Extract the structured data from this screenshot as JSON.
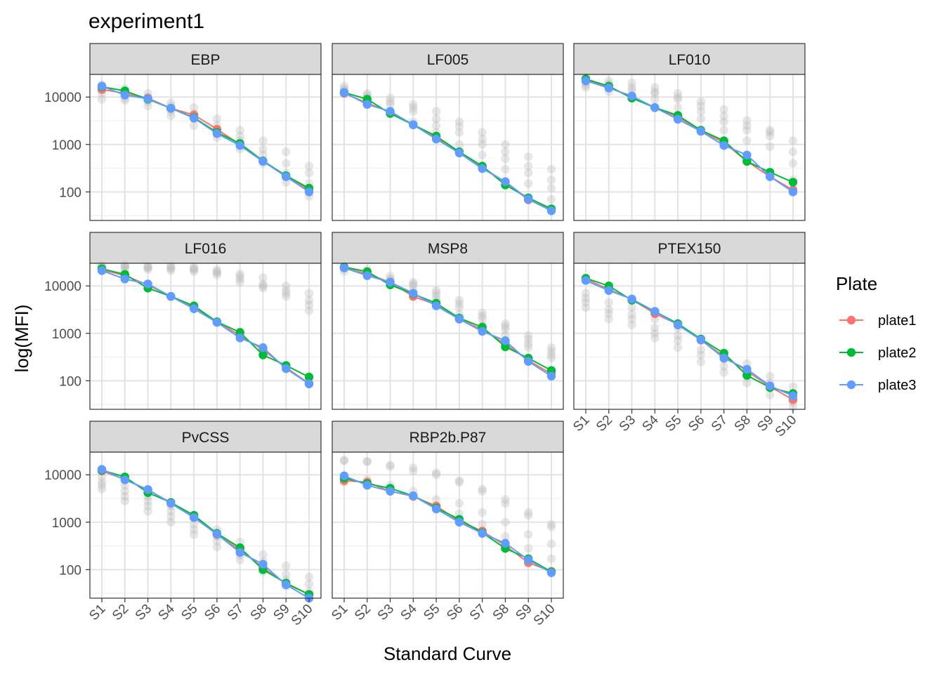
{
  "chart_data": {
    "type": "line",
    "title": "experiment1",
    "xlabel": "Standard Curve",
    "ylabel": "log(MFI)",
    "y_scale": "log10",
    "ylim": [
      25,
      30000
    ],
    "y_ticks": [
      100,
      1000,
      10000
    ],
    "y_tick_labels": [
      "100",
      "1000",
      "10000"
    ],
    "categories": [
      "S1",
      "S2",
      "S3",
      "S4",
      "S5",
      "S6",
      "S7",
      "S8",
      "S9",
      "S10"
    ],
    "legend": {
      "title": "Plate",
      "position": "right",
      "entries": [
        {
          "name": "plate1",
          "color": "#F8766D"
        },
        {
          "name": "plate2",
          "color": "#00BA38"
        },
        {
          "name": "plate3",
          "color": "#619CFF"
        }
      ]
    },
    "background_color": "#BBBBBB",
    "panels": [
      {
        "name": "EBP",
        "series": [
          {
            "name": "plate1",
            "values": [
              14500,
              12000,
              9500,
              5800,
              4200,
              2100,
              1000,
              450,
              210,
              110
            ]
          },
          {
            "name": "plate2",
            "values": [
              16500,
              13500,
              9000,
              5800,
              3700,
              1800,
              1050,
              450,
              220,
              120
            ]
          },
          {
            "name": "plate3",
            "values": [
              17000,
              11000,
              9200,
              5800,
              3600,
              1700,
              950,
              440,
              210,
              100
            ]
          }
        ],
        "background": [
          [
            9000,
            14000,
            18000,
            12000
          ],
          [
            8500,
            11000,
            15000,
            9500
          ],
          [
            6500,
            8000,
            12000,
            10000
          ],
          [
            4000,
            5000,
            7500,
            6500
          ],
          [
            2500,
            3500,
            6000,
            4500
          ],
          [
            1400,
            2000,
            3500,
            2500
          ],
          [
            800,
            1200,
            2000,
            1500
          ],
          [
            400,
            600,
            1200,
            800
          ],
          [
            160,
            250,
            700,
            400
          ],
          [
            80,
            150,
            350,
            250
          ]
        ]
      },
      {
        "name": "LF005",
        "series": [
          {
            "name": "plate1",
            "values": [
              12000,
              7500,
              4800,
              2600,
              1400,
              680,
              330,
              160,
              68,
              42
            ]
          },
          {
            "name": "plate2",
            "values": [
              12500,
              9000,
              4500,
              2600,
              1500,
              700,
              350,
              140,
              75,
              44
            ]
          },
          {
            "name": "plate3",
            "values": [
              12500,
              7000,
              5000,
              2600,
              1300,
              660,
              310,
              165,
              70,
              40
            ]
          }
        ],
        "background": [
          [
            12000,
            15000,
            17000,
            14000
          ],
          [
            8000,
            10000,
            12000,
            11000
          ],
          [
            5000,
            7000,
            9500,
            8000
          ],
          [
            3000,
            5000,
            7000,
            6000
          ],
          [
            1800,
            2500,
            5000,
            3500
          ],
          [
            1000,
            1800,
            3000,
            2400
          ],
          [
            600,
            1000,
            1800,
            1300
          ],
          [
            300,
            500,
            1000,
            700
          ],
          [
            150,
            250,
            550,
            350
          ],
          [
            70,
            120,
            300,
            180
          ]
        ]
      },
      {
        "name": "LF010",
        "series": [
          {
            "name": "plate1",
            "values": [
              23000,
              16000,
              10000,
              6000,
              3800,
              1900,
              1100,
              440,
              210,
              110
            ]
          },
          {
            "name": "plate2",
            "values": [
              24000,
              17000,
              9500,
              6000,
              4100,
              2000,
              1200,
              440,
              260,
              160
            ]
          },
          {
            "name": "plate3",
            "values": [
              22000,
              15500,
              10500,
              6000,
              3400,
              1900,
              950,
              600,
              210,
              100
            ]
          }
        ],
        "background": [
          [
            16000,
            20000,
            26000,
            18000
          ],
          [
            13000,
            17000,
            22000,
            19000
          ],
          [
            11000,
            14000,
            20000,
            16000
          ],
          [
            9000,
            12000,
            16000,
            13000
          ],
          [
            6000,
            9000,
            12000,
            10000
          ],
          [
            3500,
            5000,
            8000,
            6500
          ],
          [
            2000,
            3000,
            5500,
            4000
          ],
          [
            1200,
            2000,
            3200,
            2500
          ],
          [
            900,
            1500,
            2000,
            1800
          ],
          [
            180,
            400,
            1200,
            700
          ]
        ]
      },
      {
        "name": "LF016",
        "series": [
          {
            "name": "plate1",
            "values": [
              22000,
              16500,
              10500,
              6000,
              3600,
              1750,
              900,
              450,
              190,
              88
            ]
          },
          {
            "name": "plate2",
            "values": [
              23000,
              17500,
              9000,
              6000,
              3800,
              1750,
              1050,
              350,
              210,
              120
            ]
          },
          {
            "name": "plate3",
            "values": [
              21000,
              14000,
              11000,
              6000,
              3300,
              1700,
              800,
              500,
              180,
              86
            ]
          }
        ],
        "background": [
          [
            24000,
            26000,
            27000,
            25000
          ],
          [
            22000,
            25000,
            27000,
            26000
          ],
          [
            22000,
            24000,
            26000,
            25000
          ],
          [
            21000,
            23000,
            26000,
            25000
          ],
          [
            20000,
            22000,
            25000,
            23000
          ],
          [
            17000,
            19000,
            22000,
            20000
          ],
          [
            12000,
            14000,
            18000,
            16000
          ],
          [
            9000,
            10000,
            15000,
            11000
          ],
          [
            6000,
            7000,
            10000,
            8000
          ],
          [
            3000,
            4000,
            7000,
            5000
          ]
        ]
      },
      {
        "name": "MSP8",
        "series": [
          {
            "name": "plate1",
            "values": [
              24000,
              18000,
              12000,
              6000,
              4000,
              2000,
              1200,
              600,
              270,
              140
            ]
          },
          {
            "name": "plate2",
            "values": [
              25000,
              20000,
              10500,
              6800,
              4300,
              2100,
              1350,
              520,
              300,
              165
            ]
          },
          {
            "name": "plate3",
            "values": [
              24000,
              16500,
              12000,
              7000,
              3800,
              2000,
              1100,
              700,
              255,
              125
            ]
          }
        ],
        "background": [
          [
            20000,
            23000,
            26000,
            24000
          ],
          [
            16000,
            19000,
            22000,
            20000
          ],
          [
            11000,
            13000,
            16000,
            14000
          ],
          [
            8000,
            10000,
            12000,
            11000
          ],
          [
            5000,
            6000,
            8000,
            7000
          ],
          [
            2500,
            3500,
            5000,
            4200
          ],
          [
            1500,
            2000,
            2700,
            2300
          ],
          [
            900,
            1200,
            1600,
            1400
          ],
          [
            500,
            600,
            900,
            750
          ],
          [
            300,
            350,
            500,
            420
          ]
        ]
      },
      {
        "name": "PTEX150",
        "series": [
          {
            "name": "plate1",
            "values": [
              14000,
              8500,
              5200,
              2600,
              1550,
              720,
              330,
              160,
              75,
              40
            ]
          },
          {
            "name": "plate2",
            "values": [
              14500,
              10000,
              5000,
              2900,
              1600,
              760,
              380,
              130,
              72,
              54
            ]
          },
          {
            "name": "plate3",
            "values": [
              13000,
              8000,
              5300,
              2900,
              1500,
              730,
              300,
              175,
              78,
              48
            ]
          }
        ],
        "background": [
          [
            3500,
            4500,
            7000,
            5500
          ],
          [
            2000,
            2600,
            4500,
            3200
          ],
          [
            1500,
            2000,
            3500,
            2500
          ],
          [
            800,
            1000,
            2000,
            1300
          ],
          [
            500,
            700,
            1300,
            900
          ],
          [
            250,
            350,
            700,
            450
          ],
          [
            150,
            200,
            400,
            280
          ],
          [
            90,
            120,
            230,
            160
          ],
          [
            50,
            70,
            125,
            90
          ],
          [
            28,
            35,
            75,
            50
          ]
        ]
      },
      {
        "name": "PvCSS",
        "series": [
          {
            "name": "plate1",
            "values": [
              12000,
              8000,
              4800,
              2600,
              1300,
              550,
              260,
              110,
              50,
              30
            ]
          },
          {
            "name": "plate2",
            "values": [
              12500,
              9000,
              4200,
              2600,
              1400,
              580,
              290,
              100,
              52,
              30
            ]
          },
          {
            "name": "plate3",
            "values": [
              13000,
              7800,
              4900,
              2500,
              1250,
              560,
              230,
              130,
              48,
              25
            ]
          }
        ],
        "background": [
          [
            5000,
            6000,
            9000,
            7000
          ],
          [
            2800,
            3500,
            6000,
            4500
          ],
          [
            1700,
            2200,
            3500,
            2800
          ],
          [
            1000,
            1300,
            2200,
            1700
          ],
          [
            550,
            700,
            1300,
            900
          ],
          [
            300,
            400,
            700,
            500
          ],
          [
            160,
            200,
            380,
            280
          ],
          [
            90,
            110,
            210,
            150
          ],
          [
            45,
            60,
            120,
            80
          ],
          [
            28,
            35,
            70,
            50
          ]
        ]
      },
      {
        "name": "RBP2b.P87",
        "series": [
          {
            "name": "plate1",
            "values": [
              7500,
              7000,
              4500,
              3500,
              2200,
              1050,
              650,
              320,
              140,
              92
            ]
          },
          {
            "name": "plate2",
            "values": [
              8500,
              6500,
              5200,
              3600,
              2000,
              1150,
              600,
              280,
              170,
              90
            ]
          },
          {
            "name": "plate3",
            "values": [
              9500,
              6000,
              4500,
              3600,
              1900,
              1000,
              580,
              360,
              160,
              86
            ]
          }
        ],
        "background": [
          [
            20000,
            20000,
            9000,
            7000
          ],
          [
            19000,
            19000,
            8000,
            6500
          ],
          [
            15000,
            16000,
            6000,
            5000
          ],
          [
            12000,
            14000,
            4500,
            3500
          ],
          [
            10000,
            11000,
            3000,
            2200
          ],
          [
            7000,
            7500,
            2500,
            1500
          ],
          [
            4500,
            5000,
            1600,
            900
          ],
          [
            2500,
            3000,
            1000,
            500
          ],
          [
            1400,
            1600,
            550,
            280
          ],
          [
            800,
            900,
            350,
            170
          ]
        ]
      }
    ]
  }
}
